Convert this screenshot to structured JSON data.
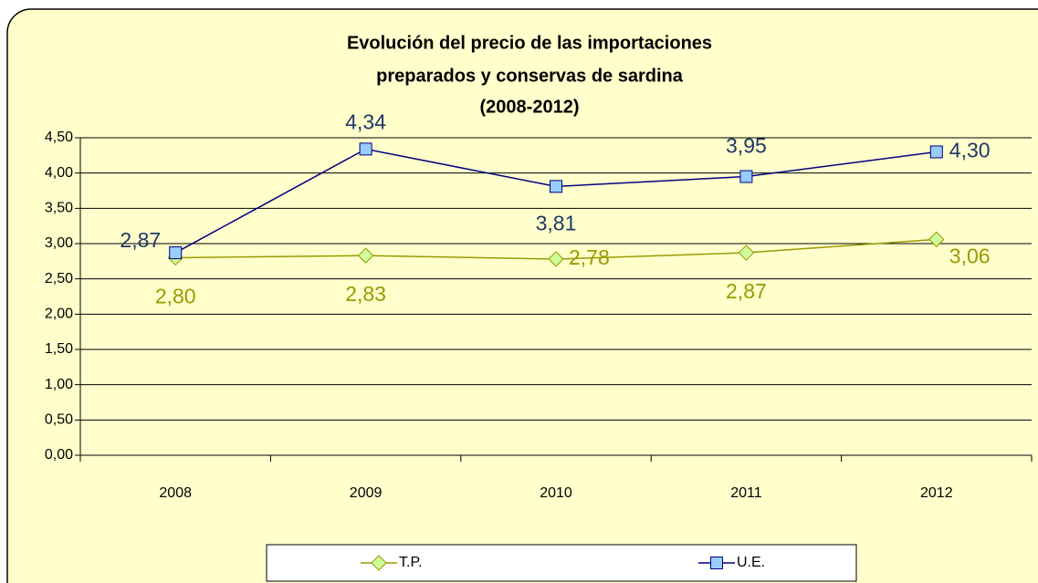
{
  "chart_data": {
    "type": "line",
    "title": [
      "Evolución del precio de las importaciones",
      "preparados y conservas de sardina",
      "(2008-2012)"
    ],
    "categories": [
      "2008",
      "2009",
      "2010",
      "2011",
      "2012"
    ],
    "series": [
      {
        "name": "T.P.",
        "color": "#999900",
        "marker_fill": "#ccff99",
        "values": [
          2.8,
          2.83,
          2.78,
          2.87,
          3.06
        ],
        "value_labels": [
          "2,80",
          "2,83",
          "2,78",
          "2,87",
          "3,06"
        ]
      },
      {
        "name": "U.E.",
        "color": "#000080",
        "marker_fill": "#99ccff",
        "values": [
          2.87,
          4.34,
          3.81,
          3.95,
          4.3
        ],
        "value_labels": [
          "2,87",
          "4,34",
          "3,81",
          "3,95",
          "4,30"
        ]
      }
    ],
    "ylim": [
      0,
      4.5
    ],
    "yticks": [
      {
        "value": 0,
        "label": "0,00"
      },
      {
        "value": 0.5,
        "label": "0,50"
      },
      {
        "value": 1,
        "label": "1,00"
      },
      {
        "value": 1.5,
        "label": "1,50"
      },
      {
        "value": 2,
        "label": "2,00"
      },
      {
        "value": 2.5,
        "label": "2,50"
      },
      {
        "value": 3,
        "label": "3,00"
      },
      {
        "value": 3.5,
        "label": "3,50"
      },
      {
        "value": 4,
        "label": "4,00"
      },
      {
        "value": 4.5,
        "label": "4,50"
      }
    ],
    "grid": true,
    "legend": "bottom"
  }
}
